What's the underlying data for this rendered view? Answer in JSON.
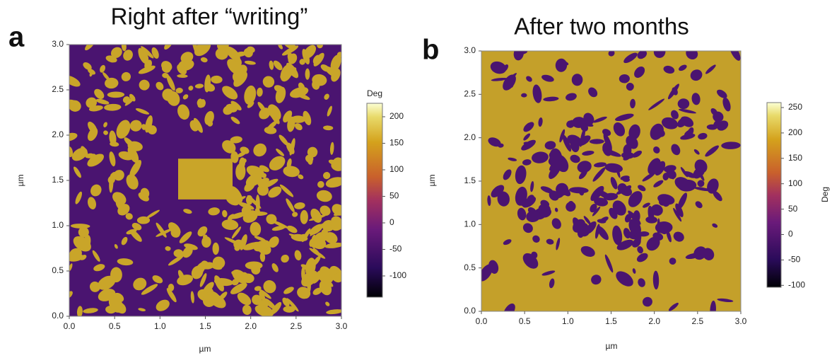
{
  "panels": [
    {
      "letter": "a",
      "title": "Right after “writing”",
      "x_label": "µm",
      "y_label": "µm",
      "x_ticks": [
        "0.0",
        "0.5",
        "1.0",
        "1.5",
        "2.0",
        "2.5",
        "3.0"
      ],
      "y_ticks": [
        "0.0",
        "0.5",
        "1.0",
        "1.5",
        "2.0",
        "2.5",
        "3.0"
      ],
      "colorbar": {
        "label": "Deg",
        "ticks": [
          "200",
          "150",
          "100",
          "50",
          "0",
          "-50",
          "-100"
        ]
      }
    },
    {
      "letter": "b",
      "title": "After two months",
      "x_label": "µm",
      "y_label": "µm",
      "x_ticks": [
        "0.0",
        "0.5",
        "1.0",
        "1.5",
        "2.0",
        "2.5",
        "3.0"
      ],
      "y_ticks": [
        "0.0",
        "0.5",
        "1.0",
        "1.5",
        "2.0",
        "2.5",
        "3.0"
      ],
      "colorbar": {
        "label": "Deg",
        "ticks": [
          "250",
          "200",
          "150",
          "100",
          "50",
          "0",
          "-50",
          "-100"
        ]
      }
    }
  ]
}
